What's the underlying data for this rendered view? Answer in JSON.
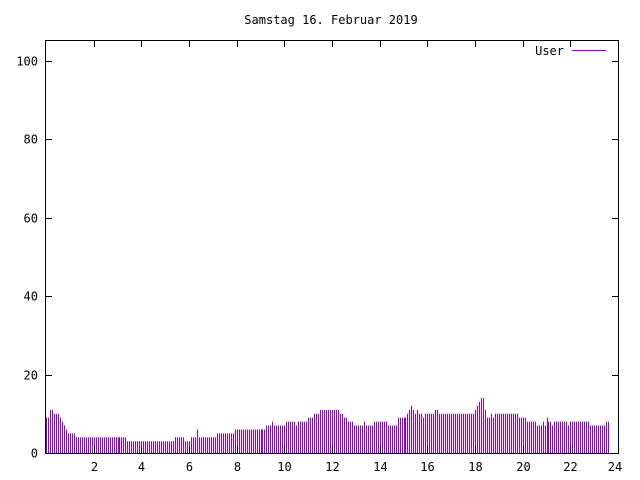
{
  "chart_data": {
    "type": "bar",
    "title": "Samstag 16. Februar 2019",
    "xlabel": "",
    "ylabel": "",
    "xlim": [
      0,
      24
    ],
    "ylim": [
      0,
      105
    ],
    "x_ticks": [
      2,
      4,
      6,
      8,
      10,
      12,
      14,
      16,
      18,
      20,
      22,
      24
    ],
    "y_ticks": [
      0,
      20,
      40,
      60,
      80,
      100
    ],
    "grid": false,
    "legend_position": "top-right",
    "interval_minutes": 5,
    "series": [
      {
        "name": "User",
        "color": "#9400d3",
        "values": [
          9,
          9,
          11,
          11,
          10,
          10,
          10,
          9,
          8,
          7,
          6,
          5,
          5,
          5,
          5,
          4,
          4,
          4,
          4,
          4,
          4,
          4,
          4,
          4,
          4,
          4,
          4,
          4,
          4,
          4,
          4,
          4,
          4,
          4,
          4,
          4,
          4,
          4,
          4,
          4,
          4,
          3,
          3,
          3,
          3,
          3,
          3,
          3,
          3,
          3,
          3,
          3,
          3,
          3,
          3,
          3,
          3,
          3,
          3,
          3,
          3,
          3,
          3,
          3,
          3,
          4,
          4,
          4,
          4,
          4,
          3,
          3,
          3,
          4,
          4,
          4,
          6,
          4,
          4,
          4,
          4,
          4,
          4,
          4,
          4,
          4,
          5,
          5,
          5,
          5,
          5,
          5,
          5,
          5,
          5,
          6,
          6,
          6,
          6,
          6,
          6,
          6,
          6,
          6,
          6,
          6,
          6,
          6,
          6,
          6,
          6,
          7,
          7,
          7,
          8,
          7,
          7,
          7,
          7,
          7,
          7,
          8,
          8,
          8,
          8,
          8,
          7,
          8,
          8,
          8,
          8,
          8,
          9,
          9,
          9,
          10,
          10,
          10,
          11,
          11,
          11,
          11,
          11,
          11,
          11,
          11,
          11,
          11,
          10,
          10,
          9,
          9,
          8,
          8,
          8,
          7,
          7,
          7,
          7,
          7,
          8,
          7,
          7,
          7,
          7,
          8,
          8,
          8,
          8,
          8,
          8,
          8,
          7,
          7,
          7,
          7,
          7,
          9,
          9,
          9,
          9,
          9,
          10,
          11,
          12,
          11,
          10,
          11,
          10,
          10,
          9,
          10,
          10,
          10,
          10,
          10,
          11,
          11,
          10,
          10,
          10,
          10,
          10,
          10,
          10,
          10,
          10,
          10,
          10,
          10,
          10,
          10,
          10,
          10,
          10,
          10,
          11,
          12,
          13,
          14,
          14,
          11,
          9,
          9,
          10,
          9,
          10,
          10,
          10,
          10,
          10,
          10,
          10,
          10,
          10,
          10,
          10,
          10,
          9,
          9,
          9,
          9,
          8,
          8,
          8,
          8,
          8,
          7,
          7,
          7,
          8,
          7,
          9,
          8,
          8,
          7,
          8,
          8,
          8,
          8,
          8,
          8,
          8,
          7,
          8,
          8,
          8,
          8,
          8,
          8,
          8,
          8,
          8,
          8,
          7,
          7,
          7,
          7,
          7,
          7,
          7,
          7,
          8,
          8
        ]
      }
    ]
  }
}
